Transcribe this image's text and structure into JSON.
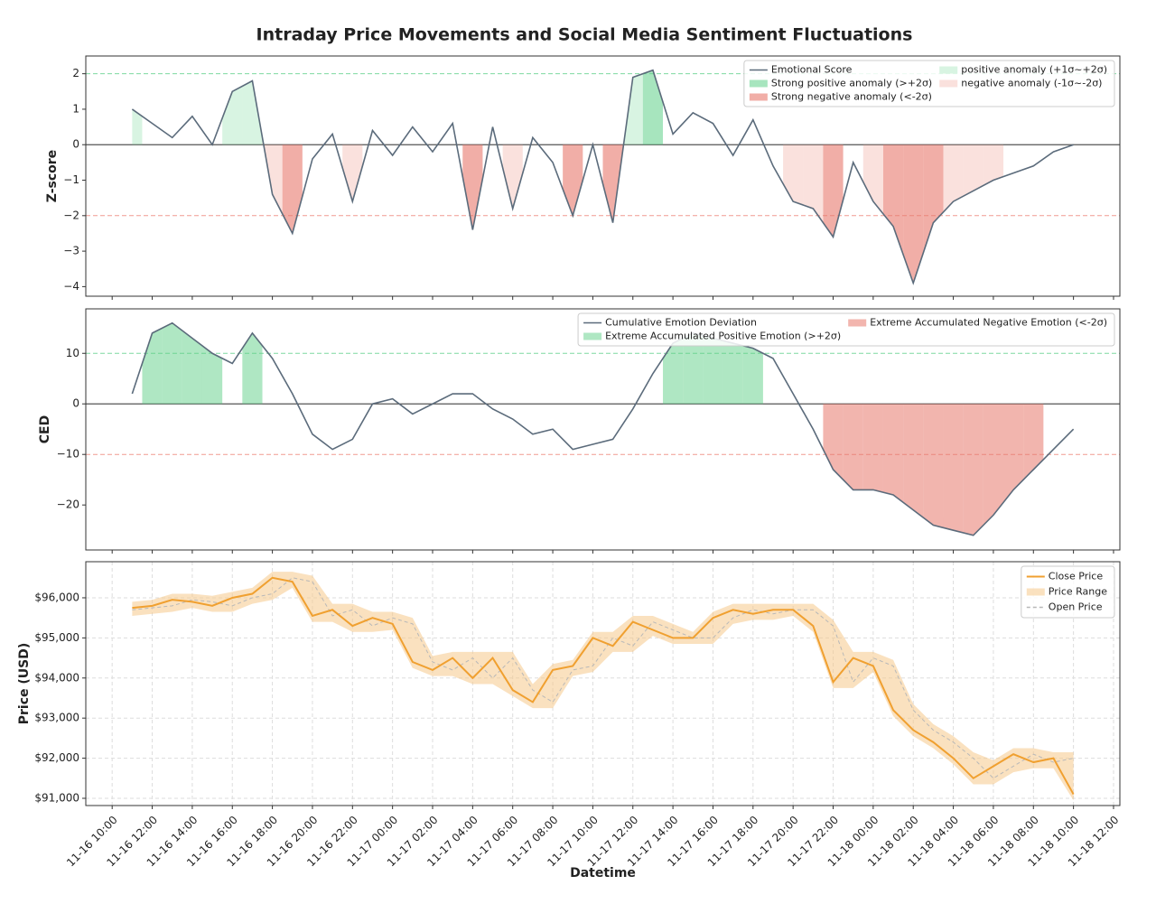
{
  "chart_data": [
    {
      "type": "line",
      "title": "Intraday Price Movements and Social Media Sentiment Fluctuations",
      "ylabel": "Z-score",
      "ylim": [
        -4.27,
        2.5
      ],
      "yticks": [
        {
          "value": -4,
          "label": "−4"
        },
        {
          "value": -3,
          "label": "−3"
        },
        {
          "value": -2,
          "label": "−2"
        },
        {
          "value": -1,
          "label": "−1"
        },
        0,
        1,
        2
      ],
      "thresholds": [
        2,
        -2
      ],
      "threshold_colors": [
        "#7fd9a0",
        "#f09a90"
      ],
      "legend": "upper right",
      "legend_columns": 2,
      "x": [
        "11-16 11:00",
        "11-16 12:00",
        "11-16 13:00",
        "11-16 14:00",
        "11-16 15:00",
        "11-16 16:00",
        "11-16 17:00",
        "11-16 18:00",
        "11-16 19:00",
        "11-16 20:00",
        "11-16 21:00",
        "11-16 22:00",
        "11-16 23:00",
        "11-17 00:00",
        "11-17 01:00",
        "11-17 02:00",
        "11-17 03:00",
        "11-17 04:00",
        "11-17 05:00",
        "11-17 06:00",
        "11-17 07:00",
        "11-17 08:00",
        "11-17 09:00",
        "11-17 10:00",
        "11-17 11:00",
        "11-17 12:00",
        "11-17 13:00",
        "11-17 14:00",
        "11-17 15:00",
        "11-17 16:00",
        "11-17 17:00",
        "11-17 18:00",
        "11-17 19:00",
        "11-17 20:00",
        "11-17 21:00",
        "11-17 22:00",
        "11-17 23:00",
        "11-18 00:00",
        "11-18 01:00",
        "11-18 02:00",
        "11-18 03:00",
        "11-18 04:00",
        "11-18 05:00",
        "11-18 06:00",
        "11-18 07:00",
        "11-18 08:00",
        "11-18 09:00",
        "11-18 10:00"
      ],
      "series": [
        {
          "name": "Emotional Score",
          "color": "#5b6b7b",
          "values": [
            1.0,
            0.6,
            0.2,
            0.8,
            0.0,
            1.5,
            1.8,
            -1.4,
            -2.5,
            -0.4,
            0.3,
            -1.6,
            0.4,
            -0.3,
            0.5,
            -0.2,
            0.6,
            -2.4,
            0.5,
            -1.8,
            0.2,
            -0.5,
            -2.0,
            0.0,
            -2.2,
            1.9,
            2.1,
            0.3,
            0.9,
            0.6,
            -0.3,
            0.7,
            -0.6,
            -1.6,
            -1.8,
            -2.6,
            -0.5,
            -1.6,
            -2.3,
            -3.9,
            -2.2,
            -1.6,
            -1.3,
            -1.0,
            -0.8,
            -0.6,
            -0.2,
            0.0
          ]
        }
      ],
      "fills": [
        {
          "name": "Strong positive anomaly (>+2σ)",
          "color": "#5fcf88",
          "opacity": 0.55,
          "range": [
            2,
            null
          ]
        },
        {
          "name": "Strong negative anomaly (<-2σ)",
          "color": "#e8786c",
          "opacity": 0.6,
          "range": [
            null,
            -2
          ]
        },
        {
          "name": "positive anomaly (+1σ~+2σ)",
          "color": "#7fd9a0",
          "opacity": 0.3,
          "range": [
            1,
            2
          ]
        },
        {
          "name": "negative anomaly (-1σ~-2σ)",
          "color": "#f09a90",
          "opacity": 0.3,
          "range": [
            -2,
            -1
          ]
        }
      ]
    },
    {
      "type": "line",
      "ylabel": "CED",
      "ylim": [
        -28.9,
        18.8
      ],
      "yticks": [
        {
          "value": -20,
          "label": "−20"
        },
        {
          "value": -10,
          "label": "−10"
        },
        0,
        10
      ],
      "thresholds": [
        10,
        -10
      ],
      "threshold_colors": [
        "#7fd9a0",
        "#f09a90"
      ],
      "legend": "upper right",
      "legend_columns": 2,
      "x": [
        "11-16 11:00",
        "11-16 12:00",
        "11-16 13:00",
        "11-16 14:00",
        "11-16 15:00",
        "11-16 16:00",
        "11-16 17:00",
        "11-16 18:00",
        "11-16 19:00",
        "11-16 20:00",
        "11-16 21:00",
        "11-16 22:00",
        "11-16 23:00",
        "11-17 00:00",
        "11-17 01:00",
        "11-17 02:00",
        "11-17 03:00",
        "11-17 04:00",
        "11-17 05:00",
        "11-17 06:00",
        "11-17 07:00",
        "11-17 08:00",
        "11-17 09:00",
        "11-17 10:00",
        "11-17 11:00",
        "11-17 12:00",
        "11-17 13:00",
        "11-17 14:00",
        "11-17 15:00",
        "11-17 16:00",
        "11-17 17:00",
        "11-17 18:00",
        "11-17 19:00",
        "11-17 20:00",
        "11-17 21:00",
        "11-17 22:00",
        "11-17 23:00",
        "11-18 00:00",
        "11-18 01:00",
        "11-18 02:00",
        "11-18 03:00",
        "11-18 04:00",
        "11-18 05:00",
        "11-18 06:00",
        "11-18 07:00",
        "11-18 08:00",
        "11-18 09:00",
        "11-18 10:00"
      ],
      "series": [
        {
          "name": "Cumulative Emotion Deviation",
          "color": "#5b6b7b",
          "values": [
            2,
            14,
            16,
            13,
            10,
            8,
            14,
            9,
            2,
            -6,
            -9,
            -7,
            0,
            1,
            -2,
            0,
            2,
            2,
            -1,
            -3,
            -6,
            -5,
            -9,
            -8,
            -7,
            -1,
            6,
            12,
            14,
            13,
            12,
            11,
            9,
            2,
            -5,
            -13,
            -17,
            -17,
            -18,
            -21,
            -24,
            -25,
            -26,
            -22,
            -17,
            -13,
            -9,
            -5
          ]
        }
      ],
      "fills": [
        {
          "name": "Extreme Accumulated Positive Emotion (>+2σ)",
          "color": "#5fcf88",
          "opacity": 0.5,
          "range": [
            10,
            null
          ]
        },
        {
          "name": "Extreme Accumulated Negative Emotion (<-2σ)",
          "color": "#e8786c",
          "opacity": 0.55,
          "range": [
            null,
            -10
          ]
        }
      ]
    },
    {
      "type": "price",
      "ylabel": "Price (USD)",
      "xlabel": "Datetime",
      "ylim": [
        90820,
        96900
      ],
      "grid": true,
      "legend": "upper right",
      "legend_columns": 1,
      "yticks": [
        {
          "value": 91000,
          "label": "$91,000"
        },
        {
          "value": 92000,
          "label": "$92,000"
        },
        {
          "value": 93000,
          "label": "$93,000"
        },
        {
          "value": 94000,
          "label": "$94,000"
        },
        {
          "value": 95000,
          "label": "$95,000"
        },
        {
          "value": 96000,
          "label": "$96,000"
        }
      ],
      "xlim": [
        "11-16 08:41",
        "11-18 12:19"
      ],
      "xticks": [
        "11-16 10:00",
        "11-16 12:00",
        "11-16 14:00",
        "11-16 16:00",
        "11-16 18:00",
        "11-16 20:00",
        "11-16 22:00",
        "11-17 00:00",
        "11-17 02:00",
        "11-17 04:00",
        "11-17 06:00",
        "11-17 08:00",
        "11-17 10:00",
        "11-17 12:00",
        "11-17 14:00",
        "11-17 16:00",
        "11-17 18:00",
        "11-17 20:00",
        "11-17 22:00",
        "11-18 00:00",
        "11-18 02:00",
        "11-18 04:00",
        "11-18 06:00",
        "11-18 08:00",
        "11-18 10:00",
        "11-18 12:00"
      ],
      "x": [
        "11-16 11:00",
        "11-16 12:00",
        "11-16 13:00",
        "11-16 14:00",
        "11-16 15:00",
        "11-16 16:00",
        "11-16 17:00",
        "11-16 18:00",
        "11-16 19:00",
        "11-16 20:00",
        "11-16 21:00",
        "11-16 22:00",
        "11-16 23:00",
        "11-17 00:00",
        "11-17 01:00",
        "11-17 02:00",
        "11-17 03:00",
        "11-17 04:00",
        "11-17 05:00",
        "11-17 06:00",
        "11-17 07:00",
        "11-17 08:00",
        "11-17 09:00",
        "11-17 10:00",
        "11-17 11:00",
        "11-17 12:00",
        "11-17 13:00",
        "11-17 14:00",
        "11-17 15:00",
        "11-17 16:00",
        "11-17 17:00",
        "11-17 18:00",
        "11-17 19:00",
        "11-17 20:00",
        "11-17 21:00",
        "11-17 22:00",
        "11-17 23:00",
        "11-18 00:00",
        "11-18 01:00",
        "11-18 02:00",
        "11-18 03:00",
        "11-18 04:00",
        "11-18 05:00",
        "11-18 06:00",
        "11-18 07:00",
        "11-18 08:00",
        "11-18 09:00",
        "11-18 10:00"
      ],
      "series": [
        {
          "name": "Close Price",
          "color": "#f0a030",
          "values": [
            95750,
            95800,
            95950,
            95900,
            95800,
            96000,
            96100,
            96500,
            96400,
            95550,
            95700,
            95300,
            95500,
            95350,
            94400,
            94200,
            94500,
            94000,
            94500,
            93700,
            93400,
            94200,
            94300,
            95000,
            94800,
            95400,
            95200,
            95000,
            95000,
            95500,
            95700,
            95600,
            95700,
            95700,
            95300,
            93900,
            94500,
            94300,
            93200,
            92700,
            92400,
            92000,
            91500,
            91800,
            92100,
            91900,
            92000,
            91100
          ]
        }
      ],
      "band": {
        "name": "Price Range",
        "color": "#f5c98a",
        "high": [
          95900,
          95950,
          96100,
          96100,
          96050,
          96150,
          96250,
          96650,
          96650,
          96550,
          95850,
          95850,
          95650,
          95650,
          95500,
          94550,
          94650,
          94650,
          94650,
          94650,
          93850,
          94350,
          94450,
          95150,
          95150,
          95550,
          95550,
          95350,
          95150,
          95650,
          95850,
          95850,
          95850,
          95850,
          95850,
          95450,
          94650,
          94650,
          94450,
          93350,
          92850,
          92550,
          92150,
          91950,
          92250,
          92250,
          92150,
          92150
        ],
        "low": [
          95550,
          95600,
          95650,
          95750,
          95650,
          95650,
          95850,
          95950,
          96250,
          95400,
          95400,
          95150,
          95150,
          95200,
          94250,
          94050,
          94050,
          93850,
          93850,
          93550,
          93250,
          93250,
          94050,
          94150,
          94650,
          94650,
          95050,
          94850,
          94850,
          94850,
          95350,
          95450,
          95450,
          95550,
          95150,
          93750,
          93750,
          94150,
          93050,
          92550,
          92250,
          91850,
          91350,
          91350,
          91650,
          91750,
          91750,
          90950
        ]
      },
      "open": {
        "name": "Open Price",
        "color": "#b8b8b8",
        "values": [
          95700,
          95750,
          95800,
          95950,
          95900,
          95800,
          96000,
          96100,
          96500,
          96400,
          95550,
          95700,
          95300,
          95500,
          95350,
          94400,
          94200,
          94500,
          94000,
          94500,
          93700,
          93400,
          94200,
          94300,
          95000,
          94800,
          95400,
          95200,
          95000,
          95000,
          95500,
          95700,
          95600,
          95700,
          95700,
          95300,
          93900,
          94500,
          94300,
          93200,
          92700,
          92400,
          92000,
          91500,
          91800,
          92100,
          91900,
          92000
        ]
      }
    }
  ]
}
